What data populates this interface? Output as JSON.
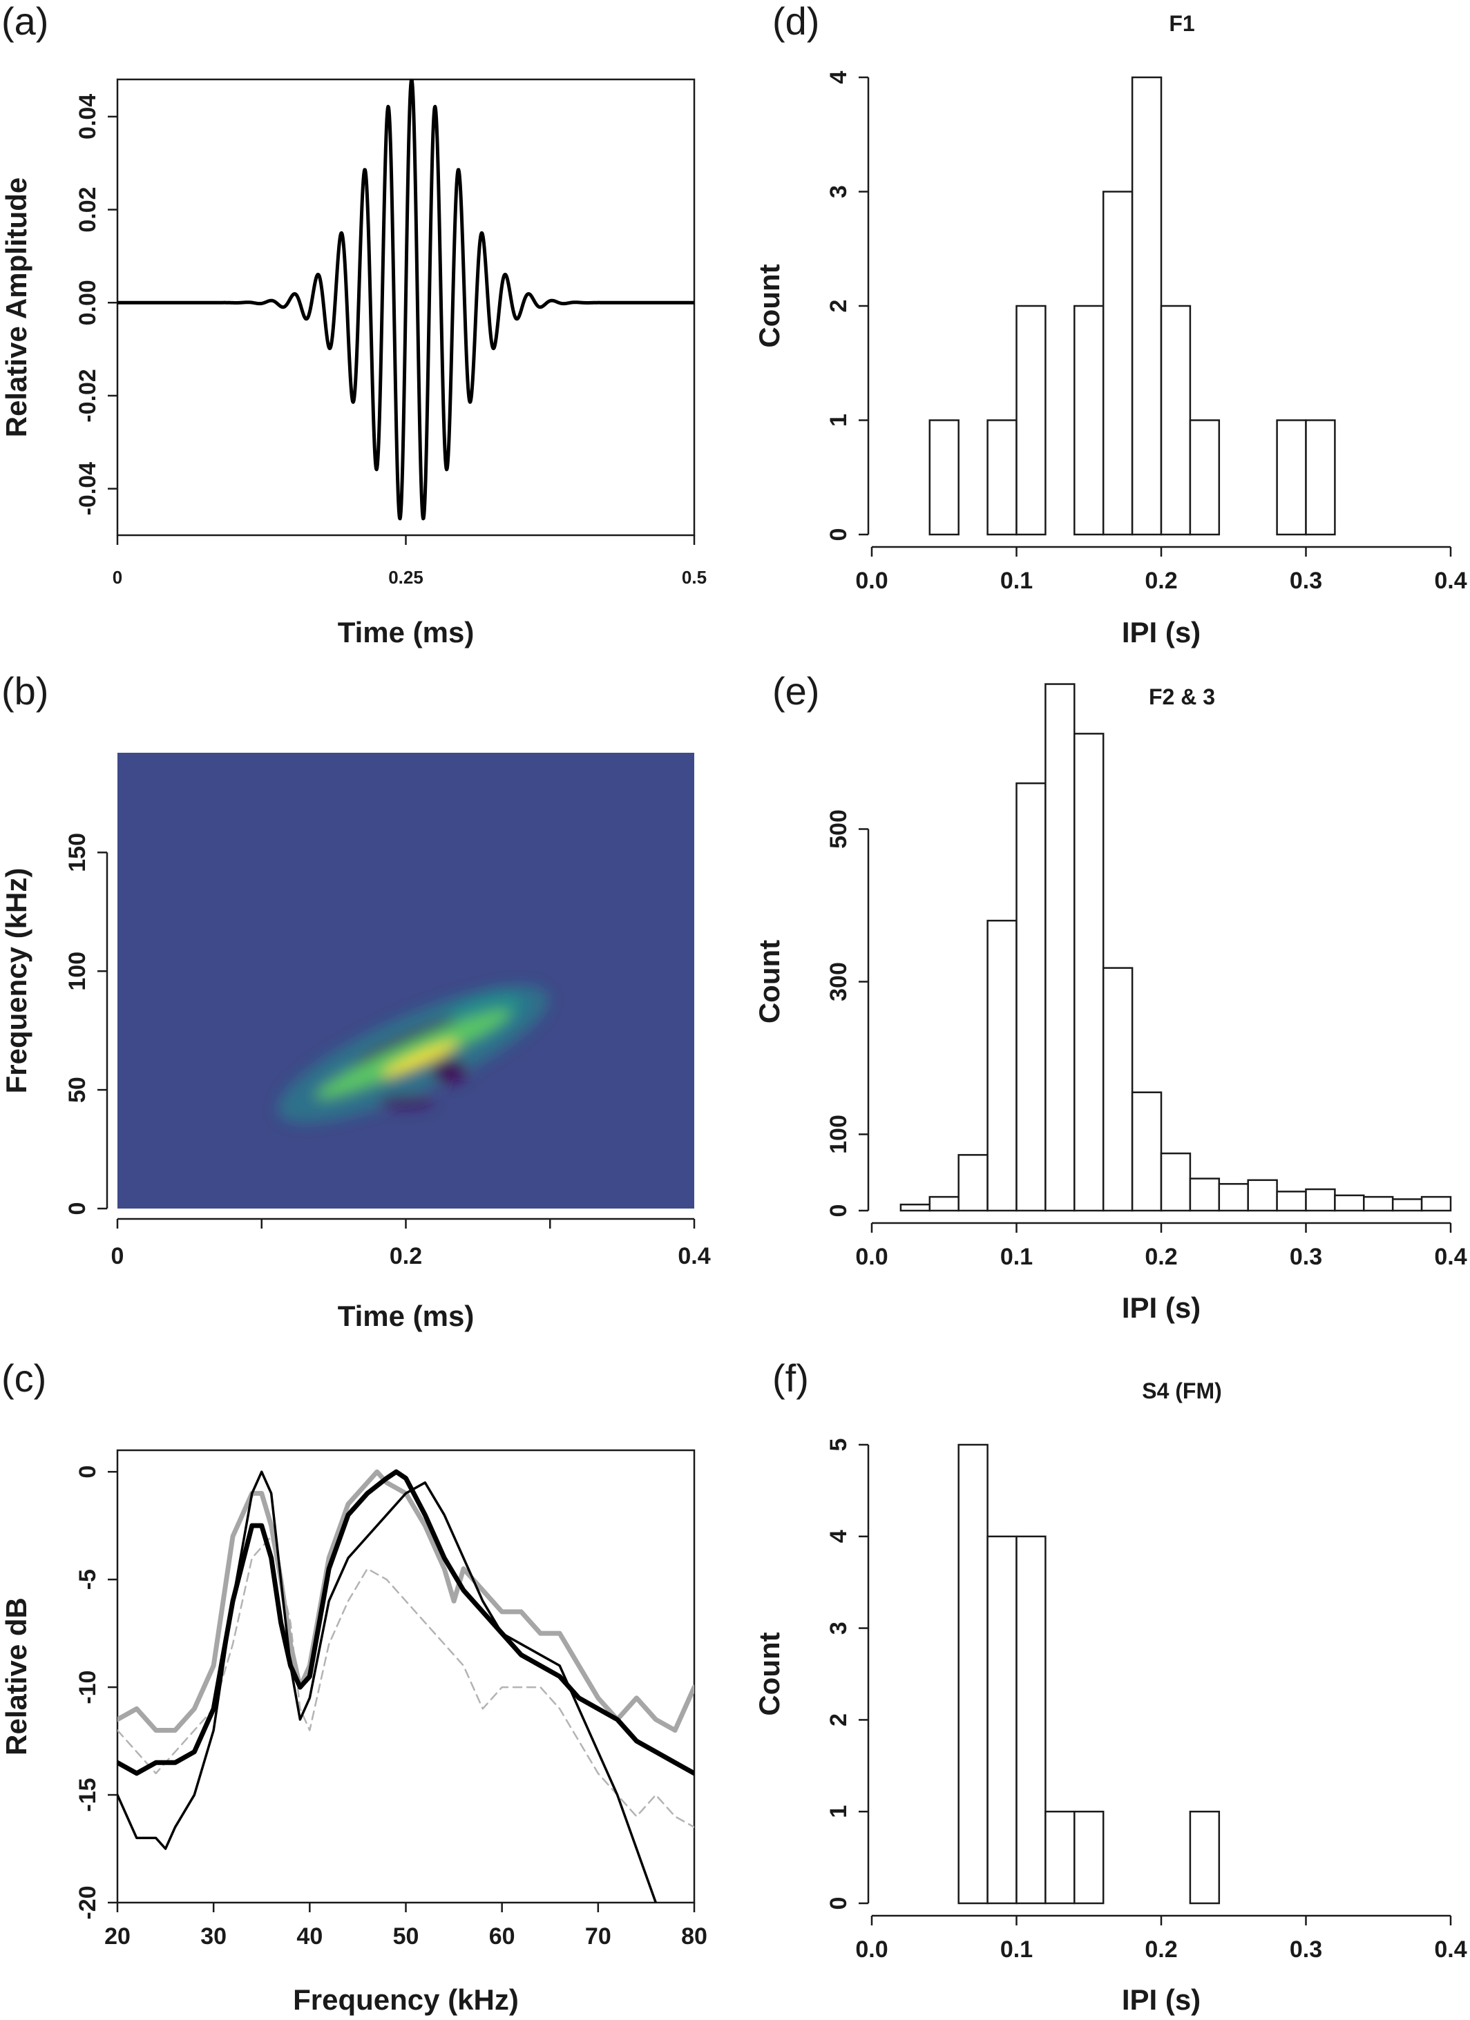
{
  "chart_data": [
    {
      "panel": "(a)",
      "type": "line",
      "xlabel": "Time (ms)",
      "ylabel": "Relative Amplitude",
      "xlim": [
        0,
        0.5
      ],
      "ylim": [
        -0.05,
        0.048
      ],
      "xticks": [
        "0",
        "0.25",
        "0.5"
      ],
      "yticks": [
        "-0.04",
        "-0.02",
        "0.00",
        "0.02",
        "0.04"
      ],
      "series": [
        {
          "color": "#000000",
          "waveform": {
            "center": 0.255,
            "frequency_cycles_per_ms": 49,
            "peak_amplitude": 0.048,
            "envelope_sigma_ms": 0.04
          }
        }
      ]
    },
    {
      "panel": "(b)",
      "type": "heatmap",
      "xlabel": "Time (ms)",
      "ylabel": "Frequency (kHz)",
      "xlim": [
        0,
        0.4
      ],
      "ylim": [
        0,
        192
      ],
      "xticks": [
        "0",
        "0.2",
        "0.4"
      ],
      "yticks": [
        "0",
        "50",
        "100",
        "150"
      ],
      "background_color": "#3e4a89",
      "colormap": [
        "#440154",
        "#3e4a89",
        "#21918c",
        "#5ec962",
        "#fde725"
      ],
      "energy_ridge": {
        "start": [
          0.13,
          45
        ],
        "end": [
          0.28,
          85
        ],
        "peak": [
          0.21,
          63
        ]
      }
    },
    {
      "panel": "(c)",
      "type": "line",
      "xlabel": "Frequency (kHz)",
      "ylabel": "Relative dB",
      "xlim": [
        20,
        80
      ],
      "ylim": [
        -20,
        1
      ],
      "xticks": [
        "20",
        "30",
        "40",
        "50",
        "60",
        "70",
        "80"
      ],
      "yticks": [
        "-20",
        "-15",
        "-10",
        "-5",
        "0"
      ],
      "series": [
        {
          "color": "#000000",
          "style": "thick",
          "x": [
            20,
            22,
            24,
            26,
            28,
            30,
            32,
            34,
            35,
            36,
            37,
            38,
            39,
            40,
            42,
            44,
            46,
            48,
            49,
            50,
            52,
            54,
            56,
            58,
            60,
            62,
            64,
            66,
            68,
            70,
            72,
            74,
            76,
            78,
            80
          ],
          "y": [
            -13.5,
            -14,
            -13.5,
            -13.5,
            -13,
            -11,
            -6,
            -2.5,
            -2.5,
            -4,
            -7,
            -9,
            -10,
            -9.5,
            -4.5,
            -2,
            -1,
            -0.3,
            0,
            -0.3,
            -2,
            -4,
            -5.5,
            -6.5,
            -7.5,
            -8.5,
            -9,
            -9.5,
            -10.5,
            -11,
            -11.5,
            -12.5,
            -13,
            -13.5,
            -14
          ]
        },
        {
          "color": "#000000",
          "style": "thin",
          "x": [
            20,
            22,
            24,
            25,
            26,
            28,
            30,
            32,
            34,
            35,
            36,
            37,
            38,
            39,
            40,
            42,
            44,
            46,
            48,
            50,
            52,
            54,
            56,
            58,
            60,
            62,
            64,
            66,
            68,
            70,
            72,
            74,
            76
          ],
          "y": [
            -15,
            -17,
            -17,
            -17.5,
            -16.5,
            -15,
            -12,
            -6,
            -1,
            0,
            -1,
            -5,
            -9,
            -11.5,
            -10.5,
            -6,
            -4,
            -3,
            -2,
            -1,
            -0.5,
            -2,
            -4,
            -6,
            -7.5,
            -8,
            -8.5,
            -9,
            -11,
            -13,
            -15,
            -17.5,
            -20
          ]
        },
        {
          "color": "#a6a6a6",
          "style": "thick",
          "x": [
            20,
            22,
            24,
            26,
            28,
            30,
            32,
            34,
            35,
            36,
            37,
            38,
            39,
            40,
            42,
            44,
            46,
            47,
            48,
            50,
            52,
            54,
            55,
            56,
            58,
            60,
            62,
            64,
            66,
            68,
            70,
            72,
            74,
            76,
            78,
            80
          ],
          "y": [
            -11.5,
            -11,
            -12,
            -12,
            -11,
            -9,
            -3,
            -1,
            -1,
            -2.5,
            -5,
            -8,
            -10,
            -9,
            -4,
            -1.5,
            -0.5,
            0,
            -0.5,
            -1,
            -2.5,
            -4.5,
            -6,
            -4.5,
            -5.5,
            -6.5,
            -6.5,
            -7.5,
            -7.5,
            -9,
            -10.5,
            -11.5,
            -10.5,
            -11.5,
            -12,
            -10
          ]
        },
        {
          "color": "#b3b3b3",
          "style": "dashed",
          "x": [
            20,
            22,
            24,
            26,
            28,
            30,
            32,
            34,
            36,
            38,
            39,
            40,
            42,
            44,
            46,
            48,
            50,
            52,
            54,
            56,
            58,
            60,
            62,
            64,
            66,
            68,
            70,
            72,
            74,
            76,
            78,
            80
          ],
          "y": [
            -12,
            -13,
            -14,
            -13,
            -12,
            -11,
            -8,
            -4,
            -3,
            -7,
            -11,
            -12,
            -8,
            -6,
            -4.5,
            -5,
            -6,
            -7,
            -8,
            -9,
            -11,
            -10,
            -10,
            -10,
            -11,
            -12.5,
            -14,
            -15,
            -16,
            -15,
            -16,
            -16.5
          ]
        }
      ]
    },
    {
      "panel": "(d)",
      "type": "bar",
      "title": "F1",
      "xlabel": "IPI (s)",
      "ylabel": "Count",
      "xlim": [
        0,
        0.4
      ],
      "ylim": [
        0,
        4
      ],
      "xticks": [
        "0.0",
        "0.1",
        "0.2",
        "0.3",
        "0.4"
      ],
      "yticks": [
        "0",
        "1",
        "2",
        "3",
        "4"
      ],
      "bin_width": 0.02,
      "bins_start": [
        0.04,
        0.06,
        0.08,
        0.1,
        0.12,
        0.14,
        0.16,
        0.18,
        0.2,
        0.22,
        0.24,
        0.26,
        0.28,
        0.3
      ],
      "values": [
        1,
        0,
        1,
        2,
        0,
        2,
        3,
        4,
        2,
        1,
        0,
        0,
        1,
        1
      ]
    },
    {
      "panel": "(e)",
      "type": "bar",
      "title": "F2 & 3",
      "xlabel": "IPI (s)",
      "ylabel": "Count",
      "xlim": [
        0,
        0.4
      ],
      "ylim": [
        0,
        600
      ],
      "xticks": [
        "0.0",
        "0.1",
        "0.2",
        "0.3",
        "0.4"
      ],
      "yticks": [
        "0",
        "100",
        "300",
        "500"
      ],
      "bin_width": 0.02,
      "bins_start": [
        0.02,
        0.04,
        0.06,
        0.08,
        0.1,
        0.12,
        0.14,
        0.16,
        0.18,
        0.2,
        0.22,
        0.24,
        0.26,
        0.28,
        0.3,
        0.32,
        0.34,
        0.36,
        0.38
      ],
      "values": [
        8,
        18,
        73,
        380,
        560,
        690,
        625,
        318,
        155,
        75,
        42,
        35,
        40,
        25,
        28,
        20,
        18,
        15,
        18
      ]
    },
    {
      "panel": "(f)",
      "type": "bar",
      "title": "S4 (FM)",
      "xlabel": "IPI (s)",
      "ylabel": "Count",
      "xlim": [
        0,
        0.4
      ],
      "ylim": [
        0,
        5
      ],
      "xticks": [
        "0.0",
        "0.1",
        "0.2",
        "0.3",
        "0.4"
      ],
      "yticks": [
        "0",
        "1",
        "2",
        "3",
        "4",
        "5"
      ],
      "bin_width": 0.02,
      "bins_start": [
        0.06,
        0.08,
        0.1,
        0.12,
        0.14,
        0.16,
        0.18,
        0.2,
        0.22
      ],
      "values": [
        5,
        4,
        4,
        1,
        1,
        0,
        0,
        0,
        1
      ]
    }
  ]
}
